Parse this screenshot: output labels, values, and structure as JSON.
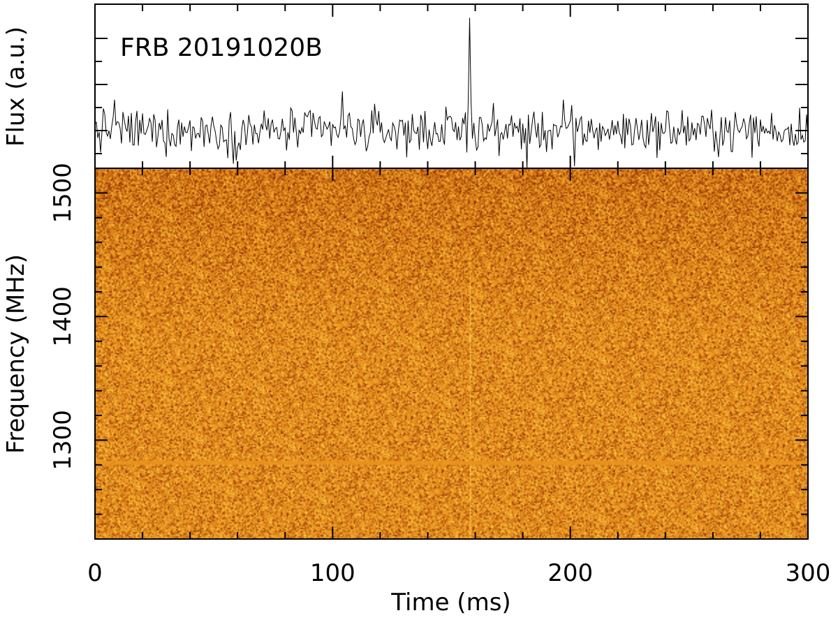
{
  "chart_data": {
    "type": "heatmap",
    "title": "FRB 20191020B",
    "panels": {
      "flux": {
        "type": "line",
        "ylabel": "Flux (a.u.)",
        "baseline_level": 0,
        "noise_rms": 1,
        "peak": {
          "x": 157.5,
          "y": 9.5
        },
        "minor_spikes": [
          {
            "x": 104,
            "y": 3.3
          },
          {
            "x": 197,
            "y": 2.6
          },
          {
            "x": 8,
            "y": 2.6
          }
        ],
        "dips": [
          {
            "x": 58,
            "y": -2.8
          },
          {
            "x": 182,
            "y": -3.2
          },
          {
            "x": 202,
            "y": -3.0
          }
        ]
      },
      "dynamic_spectrum": {
        "type": "heatmap",
        "ylabel": "Frequency (MHz)",
        "colormap": "afmhot",
        "burst_time": 157.5,
        "rfi_band_freq": 1282
      }
    },
    "xlabel": "Time (ms)",
    "xlim": [
      0,
      300
    ],
    "ylim": [
      1220,
      1520
    ],
    "xticks": [
      "0",
      "100",
      "200",
      "300"
    ],
    "yticks": [
      "1300",
      "1400",
      "1500"
    ],
    "colors": {
      "line": "#000000",
      "heat_base": "#e8901c",
      "heat_dark": "#8a2a06",
      "heat_light": "#ffd24a"
    }
  }
}
